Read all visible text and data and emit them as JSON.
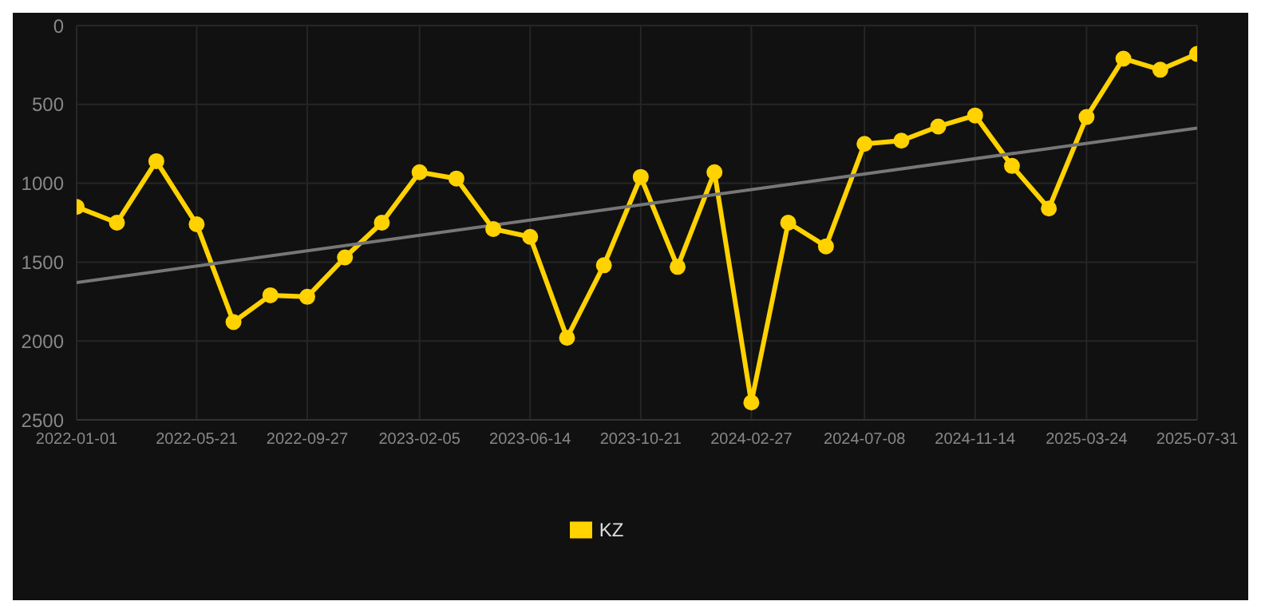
{
  "chart_data": {
    "type": "line",
    "x": [
      "2022-01-01",
      "2022-02-17",
      "2022-04-04",
      "2022-05-21",
      "2022-07-03",
      "2022-08-15",
      "2022-09-27",
      "2022-11-10",
      "2022-12-23",
      "2023-02-05",
      "2023-03-20",
      "2023-05-02",
      "2023-06-14",
      "2023-07-27",
      "2023-09-08",
      "2023-10-21",
      "2023-12-03",
      "2024-01-15",
      "2024-02-27",
      "2024-04-10",
      "2024-05-24",
      "2024-07-08",
      "2024-08-20",
      "2024-10-02",
      "2024-11-14",
      "2024-12-27",
      "2025-02-08",
      "2025-03-24",
      "2025-05-06",
      "2025-06-18",
      "2025-07-31"
    ],
    "series": [
      {
        "name": "KZ",
        "color": "#ffd200",
        "values": [
          1150,
          1250,
          860,
          1260,
          1880,
          1710,
          1720,
          1470,
          1250,
          930,
          970,
          1290,
          1340,
          1980,
          1520,
          960,
          1530,
          930,
          2390,
          1250,
          1400,
          750,
          730,
          640,
          570,
          890,
          1160,
          580,
          210,
          280,
          180
        ]
      },
      {
        "type": "line",
        "color": "#777777",
        "x": [
          "2022-01-01",
          "2025-07-31"
        ],
        "values": [
          1630,
          650
        ],
        "marker": "none"
      }
    ],
    "xlim": [
      "2022-01-01",
      "2025-07-31"
    ],
    "xticks": [
      "2022-01-01",
      "2022-05-21",
      "2022-09-27",
      "2023-02-05",
      "2023-06-14",
      "2023-10-21",
      "2024-02-27",
      "2024-07-08",
      "2024-11-14",
      "2025-03-24",
      "2025-07-31"
    ],
    "ylim": [
      2500,
      0
    ],
    "yticks": [
      0,
      500,
      1000,
      1500,
      2000,
      2500
    ],
    "grid": true,
    "legend": "bottom",
    "marker": "circle"
  }
}
